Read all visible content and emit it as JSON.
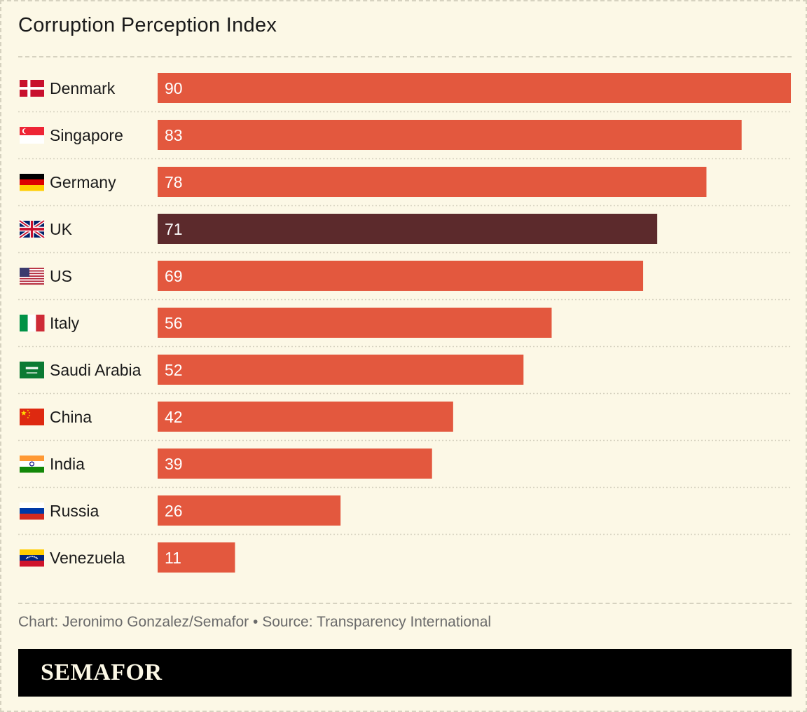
{
  "header": {
    "title": "Corruption Perception Index"
  },
  "footer": {
    "credit": "Chart: Jeronimo Gonzalez/Semafor",
    "separator": "•",
    "source": "Source: Transparency International",
    "brand": "SEMAFOR"
  },
  "colors": {
    "bar": "#e3583e",
    "highlight": "#5c2a2c",
    "background": "#fcf8e6",
    "gridline": "#d6d2c0"
  },
  "chart_data": {
    "type": "bar",
    "orientation": "horizontal",
    "categories": [
      "Denmark",
      "Singapore",
      "Germany",
      "UK",
      "US",
      "Italy",
      "Saudi Arabia",
      "China",
      "India",
      "Russia",
      "Venezuela"
    ],
    "values": [
      90,
      83,
      78,
      71,
      69,
      56,
      52,
      42,
      39,
      26,
      11
    ],
    "flag_icons": [
      "denmark-flag-icon",
      "singapore-flag-icon",
      "germany-flag-icon",
      "uk-flag-icon",
      "us-flag-icon",
      "italy-flag-icon",
      "saudi-arabia-flag-icon",
      "china-flag-icon",
      "india-flag-icon",
      "russia-flag-icon",
      "venezuela-flag-icon"
    ],
    "highlighted": "UK",
    "xlim": [
      0,
      90
    ],
    "data_labels": true,
    "grid": false,
    "title": "Corruption Perception Index",
    "xlabel": "",
    "ylabel": ""
  }
}
